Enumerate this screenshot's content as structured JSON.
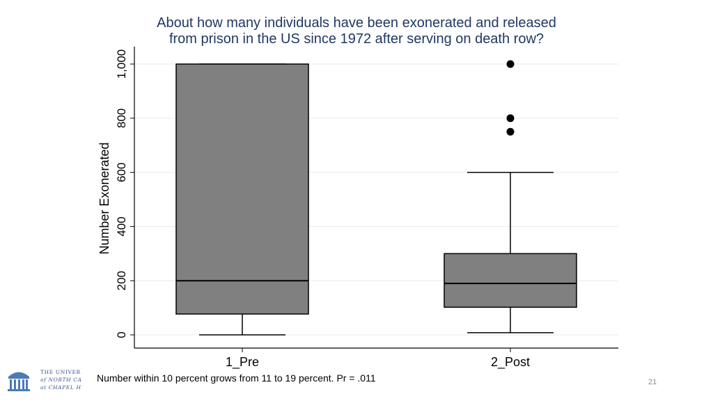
{
  "chart_data": {
    "type": "box",
    "title_lines": [
      "About how many individuals have been exonerated and released",
      "from prison in the US since 1972 after serving on death row?"
    ],
    "ylabel": "Number Exonerated",
    "xlabel": "",
    "ylim": [
      0,
      1000
    ],
    "yticks": [
      0,
      200,
      400,
      600,
      800,
      1000
    ],
    "ytick_labels": [
      "0",
      "200",
      "400",
      "600",
      "800",
      "1,000"
    ],
    "grid": true,
    "categories": [
      "1_Pre",
      "2_Post"
    ],
    "boxes": [
      {
        "name": "1_Pre",
        "min": 0,
        "q1": 77,
        "median": 200,
        "q3": 1000,
        "max": 1000,
        "outliers": []
      },
      {
        "name": "2_Post",
        "min": 8,
        "q1": 102,
        "median": 190,
        "q3": 300,
        "max": 600,
        "outliers": [
          750,
          800,
          1000
        ]
      }
    ],
    "box_color": "#808080",
    "outlier_color": "#000000"
  },
  "footer": {
    "note": "Number within 10 percent grows from 11 to 19 percent. Pr = .011",
    "page_number": "21",
    "logo_lines": [
      "THE UNIVER",
      "of NORTH CA",
      "at CHAPEL H"
    ]
  }
}
